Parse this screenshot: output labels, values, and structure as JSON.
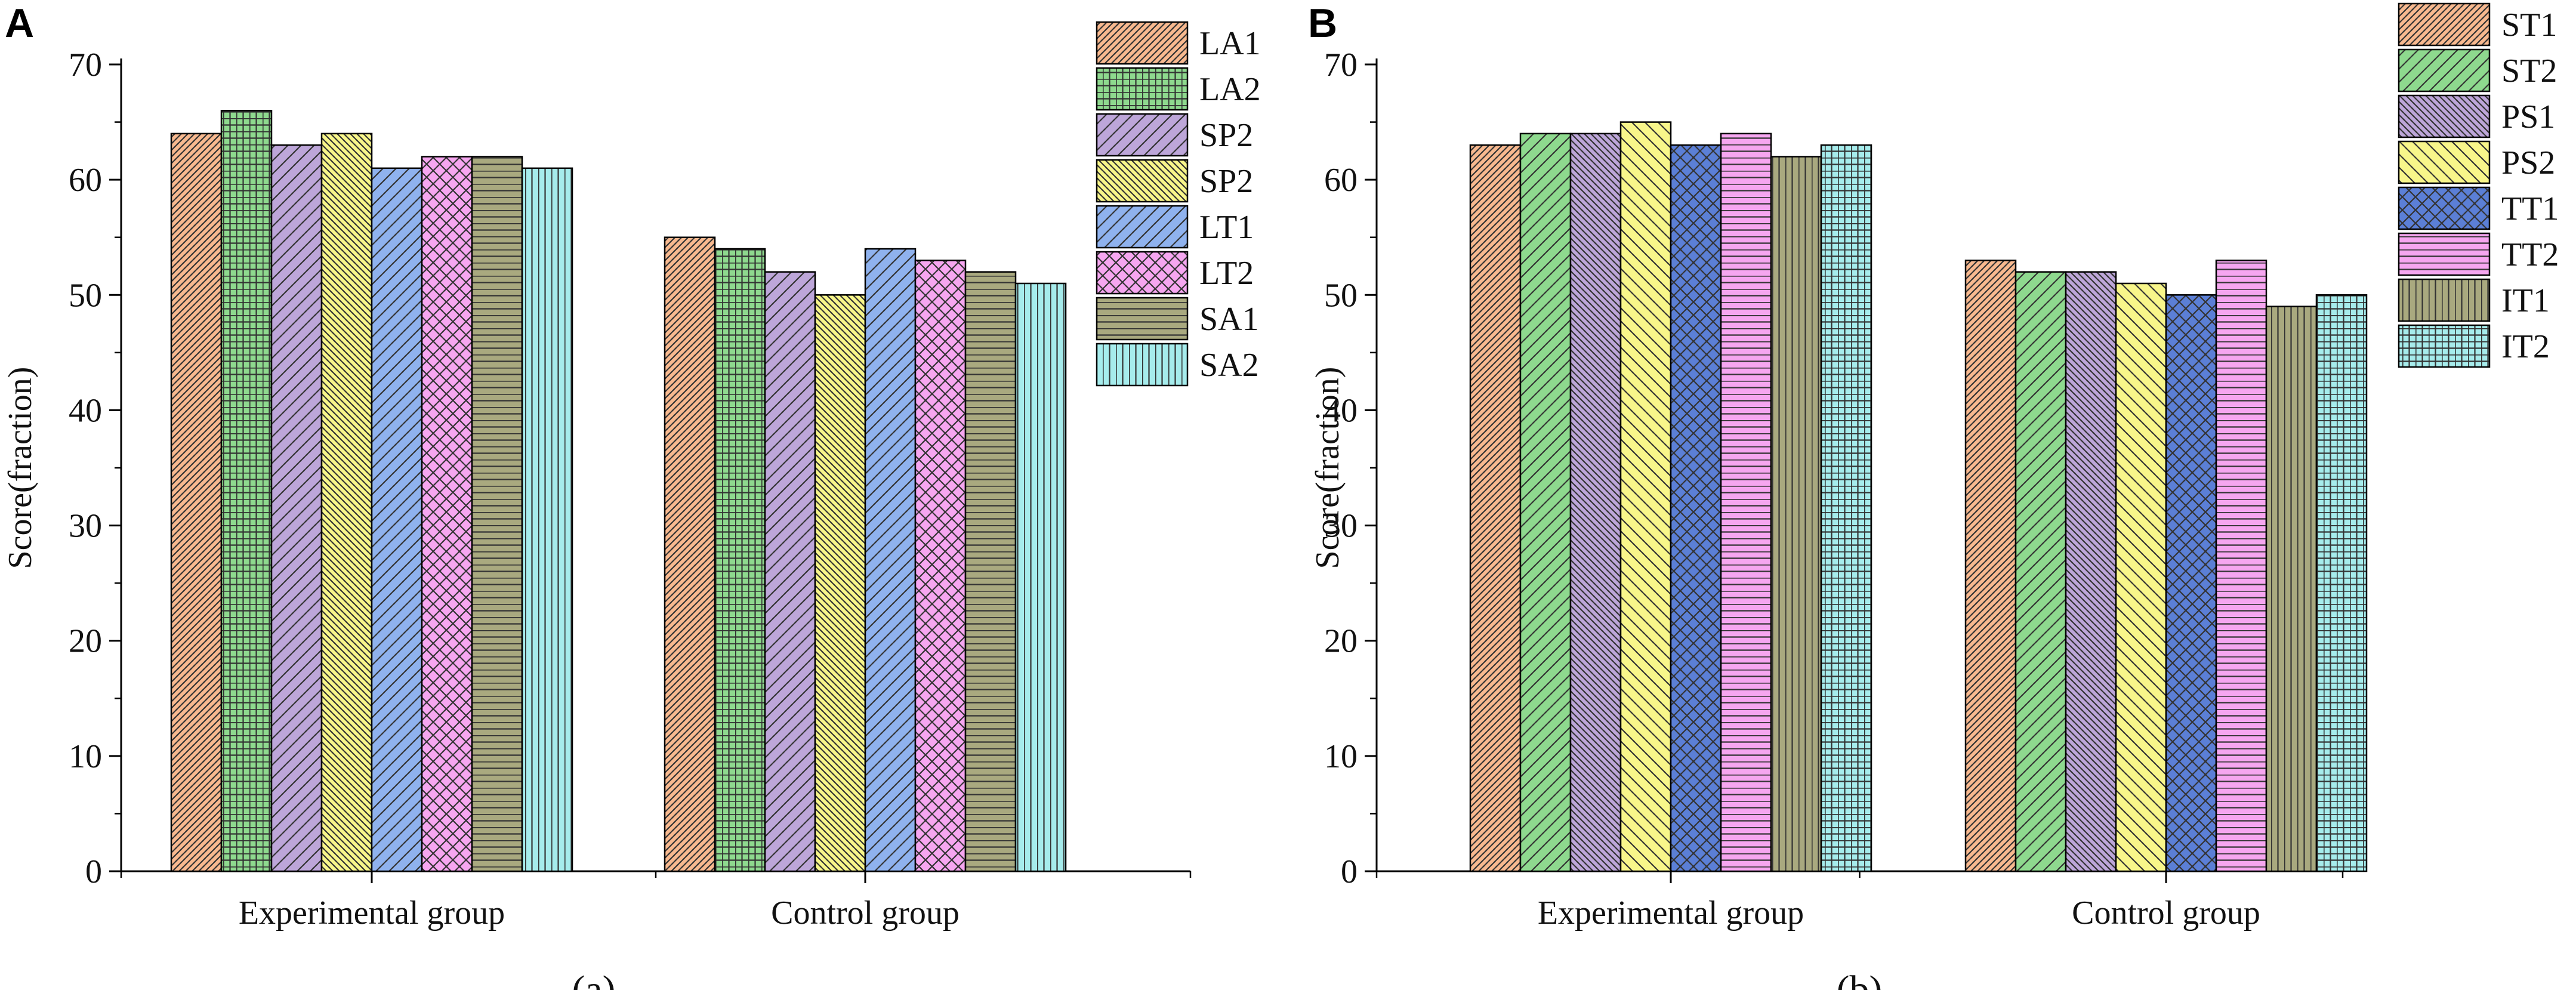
{
  "chart_data": [
    {
      "type": "bar",
      "panel_label": "A",
      "caption": "(a)",
      "title": "",
      "xlabel": "",
      "ylabel": "Score(fraction)",
      "ylim": [
        0,
        70
      ],
      "yticks": [
        0,
        10,
        20,
        30,
        40,
        50,
        60,
        70
      ],
      "categories": [
        "Experimental group",
        "Control group"
      ],
      "legend_position": "top-right",
      "series": [
        {
          "name": "LA1",
          "values": [
            64,
            55
          ],
          "color": "#F8B98F",
          "pattern": "diag-fwd"
        },
        {
          "name": "LA2",
          "values": [
            66,
            54
          ],
          "color": "#8ED98E",
          "pattern": "grid"
        },
        {
          "name": "SP2",
          "values": [
            63,
            52
          ],
          "color": "#BDA6D9",
          "pattern": "diag-fwd-wide"
        },
        {
          "name": "SP2",
          "values": [
            64,
            50
          ],
          "color": "#F8F68A",
          "pattern": "diag-back"
        },
        {
          "name": "LT1",
          "values": [
            61,
            54
          ],
          "color": "#8FB2EE",
          "pattern": "diag-fwd-wide"
        },
        {
          "name": "LT2",
          "values": [
            62,
            53
          ],
          "color": "#F6A6F0",
          "pattern": "crosshatch"
        },
        {
          "name": "SA1",
          "values": [
            62,
            52
          ],
          "color": "#A9A97F",
          "pattern": "horizontal"
        },
        {
          "name": "SA2",
          "values": [
            61,
            51
          ],
          "color": "#A6ECEC",
          "pattern": "vertical"
        }
      ]
    },
    {
      "type": "bar",
      "panel_label": "B",
      "caption": "(b)",
      "title": "",
      "xlabel": "",
      "ylabel": "Score(fraction)",
      "ylim": [
        0,
        70
      ],
      "yticks": [
        0,
        10,
        20,
        30,
        40,
        50,
        60,
        70
      ],
      "categories": [
        "Experimental group",
        "Control group"
      ],
      "legend_position": "top-right",
      "series": [
        {
          "name": "ST1",
          "values": [
            63,
            53
          ],
          "color": "#F8B98F",
          "pattern": "diag-fwd"
        },
        {
          "name": "ST2",
          "values": [
            64,
            52
          ],
          "color": "#8ED98E",
          "pattern": "diag-fwd-wide"
        },
        {
          "name": "PS1",
          "values": [
            64,
            52
          ],
          "color": "#BDA6D9",
          "pattern": "diag-back"
        },
        {
          "name": "PS2",
          "values": [
            65,
            51
          ],
          "color": "#F8F68A",
          "pattern": "diag-back-wide"
        },
        {
          "name": "TT1",
          "values": [
            63,
            50
          ],
          "color": "#5B7FD6",
          "pattern": "crosshatch"
        },
        {
          "name": "TT2",
          "values": [
            64,
            53
          ],
          "color": "#F6A6F0",
          "pattern": "horizontal"
        },
        {
          "name": "IT1",
          "values": [
            62,
            49
          ],
          "color": "#A9A97F",
          "pattern": "vertical"
        },
        {
          "name": "IT2",
          "values": [
            63,
            50
          ],
          "color": "#A6ECEC",
          "pattern": "grid"
        }
      ]
    }
  ]
}
